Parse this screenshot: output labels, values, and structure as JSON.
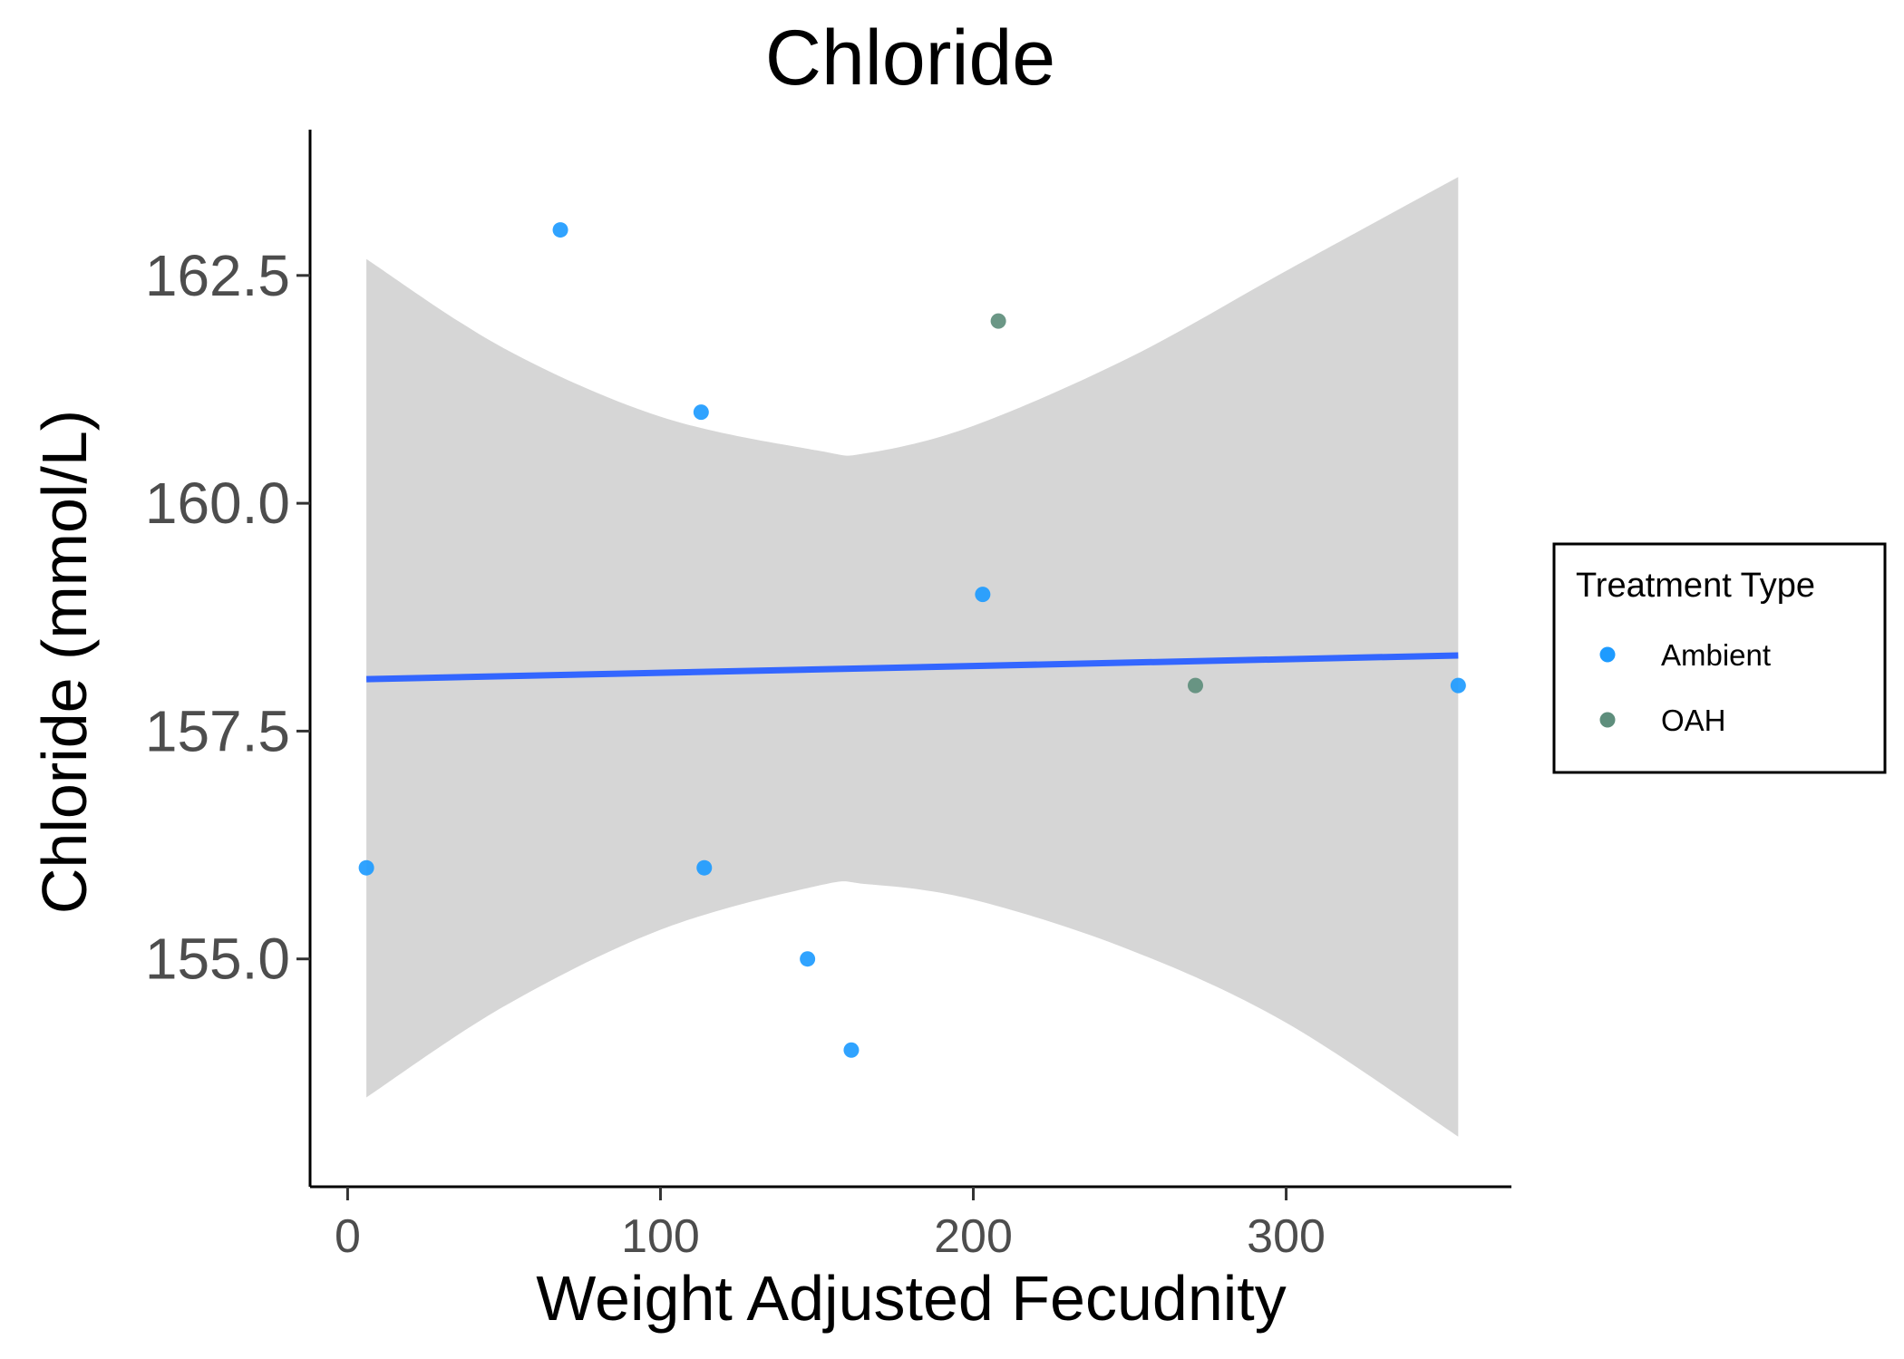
{
  "chart_data": {
    "type": "scatter",
    "title": "Chloride",
    "xlabel": "Weight Adjusted Fecudnity",
    "ylabel": "Chloride (mmol/L)",
    "xlim": [
      -12,
      372
    ],
    "ylim": [
      152.5,
      164.1
    ],
    "x_ticks": [
      0,
      100,
      200,
      300
    ],
    "x_tick_labels": [
      "0",
      "100",
      "200",
      "300"
    ],
    "y_ticks": [
      155.0,
      157.5,
      160.0,
      162.5
    ],
    "y_tick_labels": [
      "155.0",
      "157.5",
      "160.0",
      "162.5"
    ],
    "grid": false,
    "legend": {
      "title": "Treatment Type",
      "placement": "right",
      "entries": [
        {
          "label": "Ambient",
          "color": "#1e9bff"
        },
        {
          "label": "OAH",
          "color": "#5e8e7c"
        }
      ]
    },
    "points": [
      {
        "x": 6,
        "y": 156.0,
        "group": "Ambient"
      },
      {
        "x": 68,
        "y": 163.0,
        "group": "Ambient"
      },
      {
        "x": 113,
        "y": 161.0,
        "group": "Ambient"
      },
      {
        "x": 114,
        "y": 156.0,
        "group": "Ambient"
      },
      {
        "x": 147,
        "y": 155.0,
        "group": "Ambient"
      },
      {
        "x": 161,
        "y": 154.0,
        "group": "Ambient"
      },
      {
        "x": 203,
        "y": 159.0,
        "group": "Ambient"
      },
      {
        "x": 355,
        "y": 158.0,
        "group": "Ambient"
      },
      {
        "x": 208,
        "y": 162.0,
        "group": "OAH"
      },
      {
        "x": 271,
        "y": 158.0,
        "group": "OAH"
      }
    ],
    "trend_line": {
      "color": "#3366ff",
      "x": [
        6,
        355
      ],
      "y": [
        158.07,
        158.33
      ]
    },
    "confidence_band": {
      "color": "#d6d6d6",
      "x": [
        6,
        50,
        100,
        150,
        166,
        200,
        250,
        300,
        355
      ],
      "upper": [
        162.68,
        161.7,
        160.95,
        160.58,
        160.55,
        160.85,
        161.6,
        162.55,
        163.58
      ],
      "lower": [
        153.48,
        154.48,
        155.32,
        155.8,
        155.82,
        155.65,
        155.1,
        154.3,
        153.05
      ]
    }
  }
}
